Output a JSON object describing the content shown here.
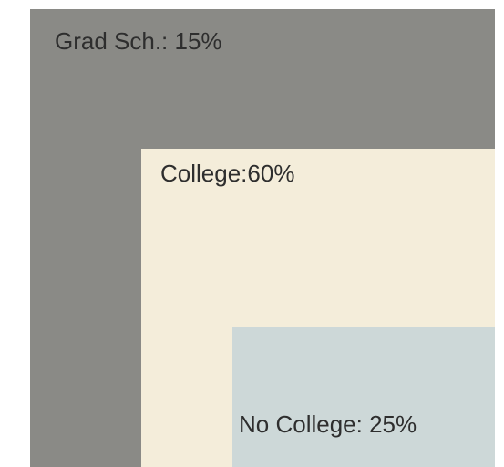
{
  "chart_data": {
    "type": "nested",
    "values": [
      15,
      60,
      25
    ],
    "value_labels": [
      "Grad Sch.: 15%",
      "College:60%",
      "No College: 25%"
    ],
    "colors": [
      "#8a8a86",
      "#f4edda",
      "#cdd8d8"
    ]
  }
}
